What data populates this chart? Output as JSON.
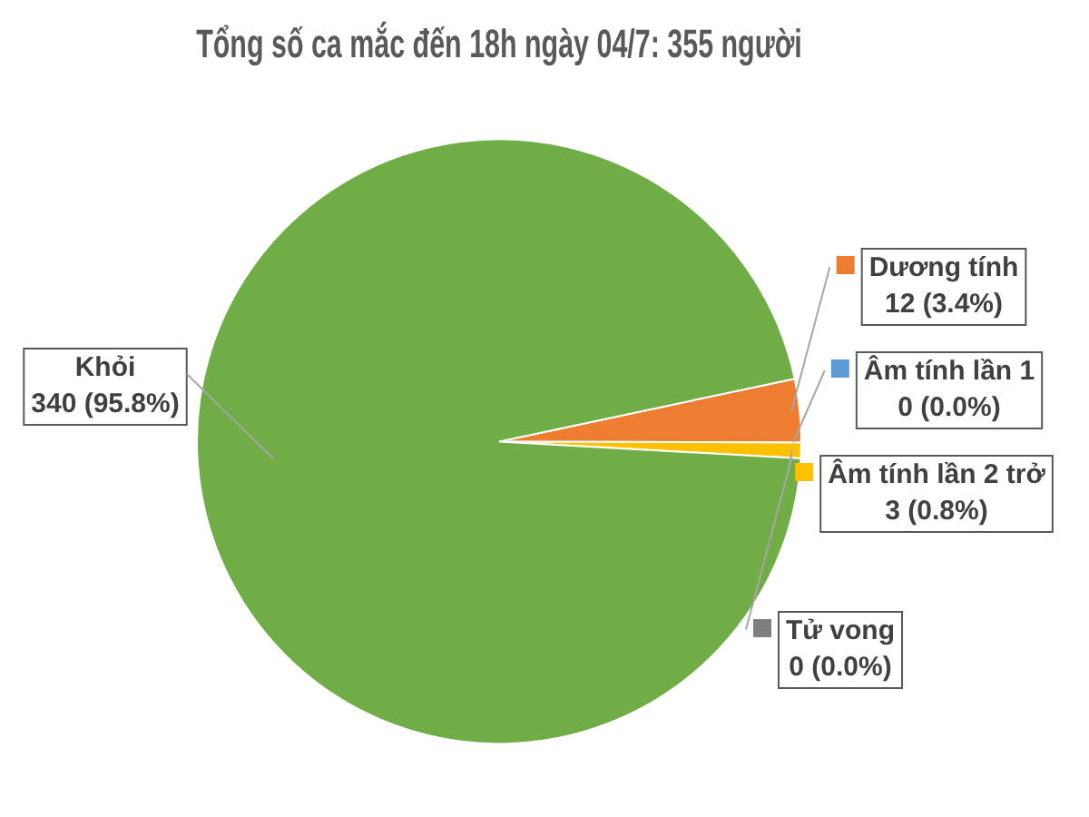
{
  "chart_data": {
    "type": "pie",
    "title": "Tổng số ca mắc đến 18h ngày 04/7: 355 người",
    "categories": [
      "Dương tính",
      "Âm tính lần 1",
      "Âm tính lần 2 trở",
      "Tử vong",
      "Khỏi"
    ],
    "values": [
      12,
      0,
      3,
      0,
      340
    ],
    "value_labels": [
      "12 (3.4%)",
      "0 (0.0%)",
      "3 (0.8%)",
      "0 (0.0%)",
      "340 (95.8%)"
    ],
    "colors": [
      "#ed7d31",
      "#5b9bd5",
      "#ffc000",
      "#7f7f7f",
      "#70ad47"
    ],
    "legend": "right"
  }
}
